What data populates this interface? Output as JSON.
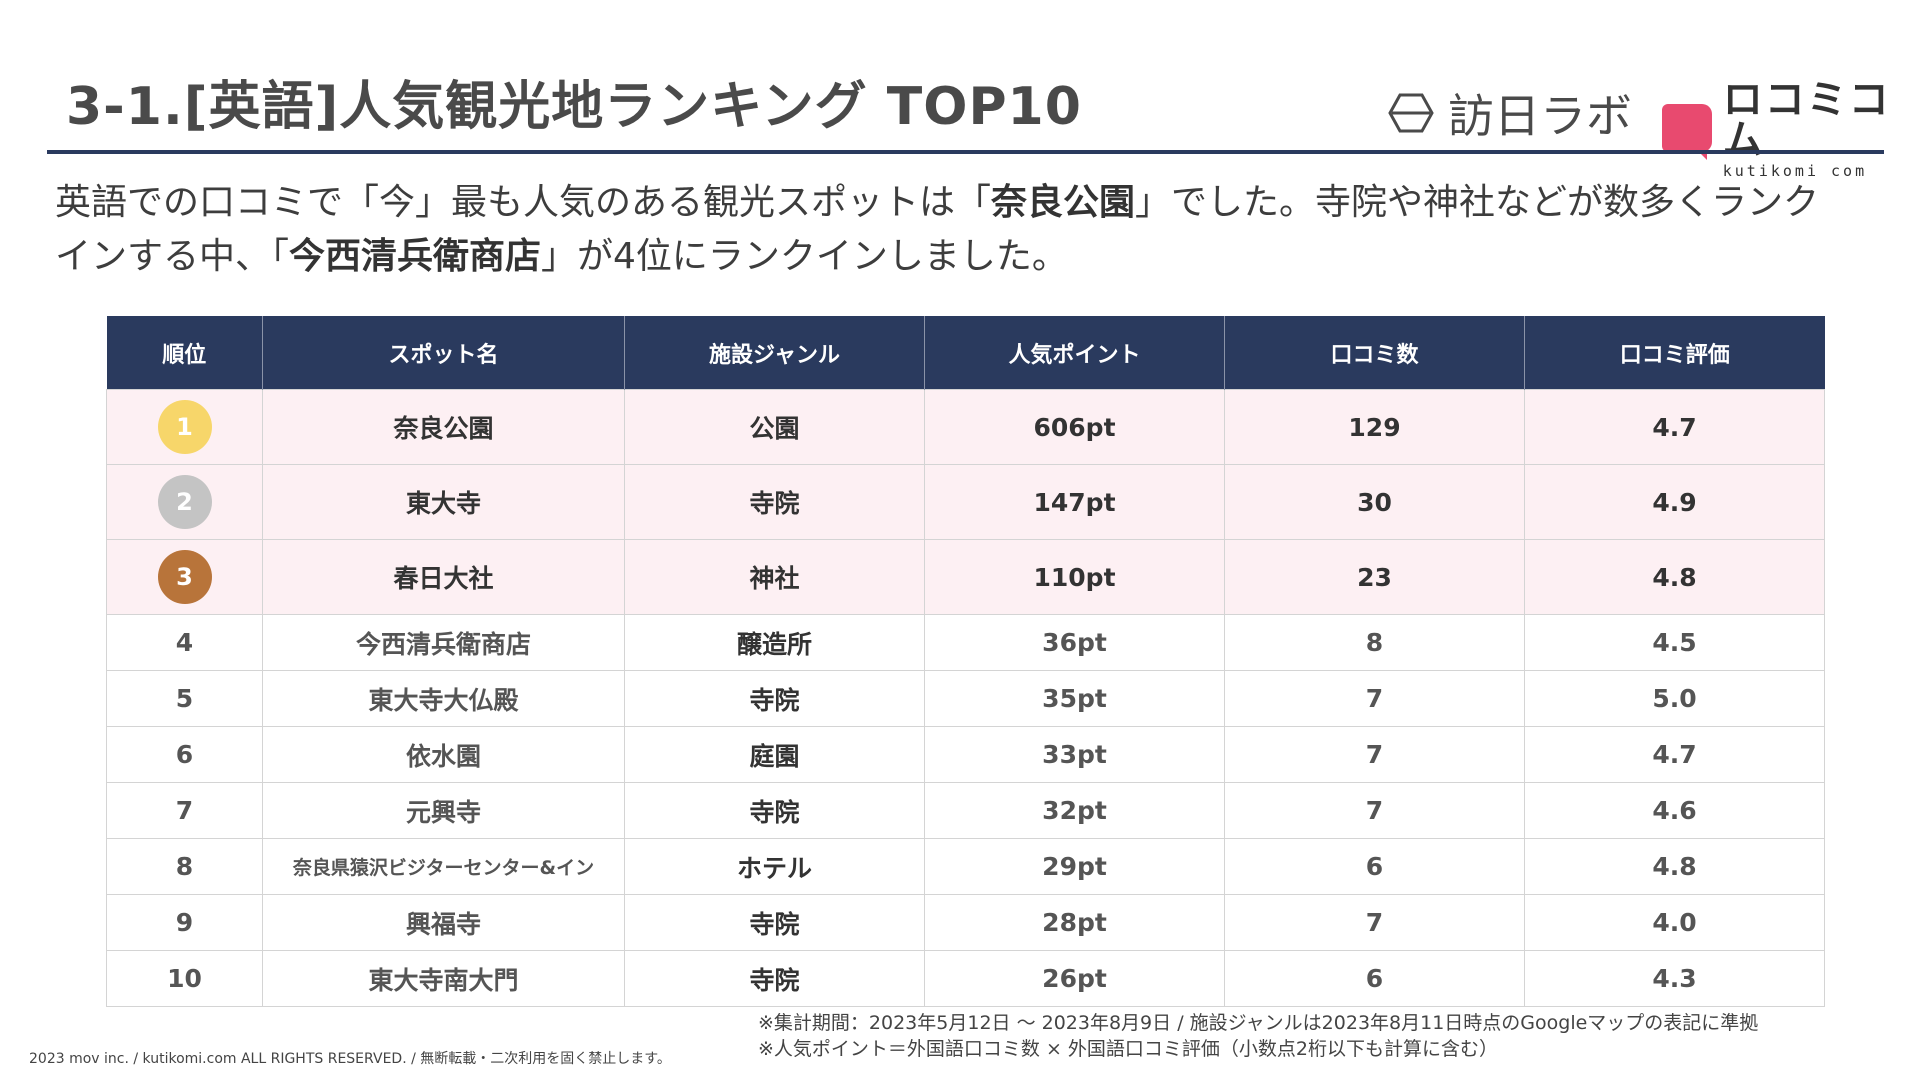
{
  "title": "3-1.[英語]人気観光地ランキング TOP10",
  "logos": {
    "houjin_lab": "訪日ラボ",
    "kuchikomi_jp": "ロコミコム",
    "kuchikomi_en": "kutikomi com",
    "brand_color": "#e84a6f"
  },
  "lead": {
    "part1": "英語での口コミで「今」最も人気のある観光スポットは「",
    "bold1": "奈良公園",
    "part2": "」でした。寺院や神社などが数多くランクインする中、「",
    "bold2": "今西清兵衛商店",
    "part3": "」が4位にランクインしました。"
  },
  "table": {
    "headers": [
      "順位",
      "スポット名",
      "施設ジャンル",
      "人気ポイント",
      "口コミ数",
      "口コミ評価"
    ],
    "rows": [
      {
        "rank": "1",
        "spot": "奈良公園",
        "genre": "公園",
        "points": "606pt",
        "reviews": "129",
        "rating": "4.7"
      },
      {
        "rank": "2",
        "spot": "東大寺",
        "genre": "寺院",
        "points": "147pt",
        "reviews": "30",
        "rating": "4.9"
      },
      {
        "rank": "3",
        "spot": "春日大社",
        "genre": "神社",
        "points": "110pt",
        "reviews": "23",
        "rating": "4.8"
      },
      {
        "rank": "4",
        "spot": "今西清兵衛商店",
        "genre": "醸造所",
        "points": "36pt",
        "reviews": "8",
        "rating": "4.5"
      },
      {
        "rank": "5",
        "spot": "東大寺大仏殿",
        "genre": "寺院",
        "points": "35pt",
        "reviews": "7",
        "rating": "5.0"
      },
      {
        "rank": "6",
        "spot": "依水園",
        "genre": "庭園",
        "points": "33pt",
        "reviews": "7",
        "rating": "4.7"
      },
      {
        "rank": "7",
        "spot": "元興寺",
        "genre": "寺院",
        "points": "32pt",
        "reviews": "7",
        "rating": "4.6"
      },
      {
        "rank": "8",
        "spot": "奈良県猿沢ビジターセンター&イン",
        "genre": "ホテル",
        "points": "29pt",
        "reviews": "6",
        "rating": "4.8"
      },
      {
        "rank": "9",
        "spot": "興福寺",
        "genre": "寺院",
        "points": "28pt",
        "reviews": "7",
        "rating": "4.0"
      },
      {
        "rank": "10",
        "spot": "東大寺南大門",
        "genre": "寺院",
        "points": "26pt",
        "reviews": "6",
        "rating": "4.3"
      }
    ]
  },
  "notes": {
    "line1": "※集計期間：2023年5月12日 〜 2023年8月9日 / 施設ジャンルは2023年8月11日時点のGoogleマップの表記に準拠",
    "line2": "※人気ポイント＝外国語口コミ数 × 外国語口コミ評価（小数点2桁以下も計算に含む）"
  },
  "copyright": "2023 mov inc. / kutikomi.com ALL RIGHTS RESERVED. / 無断転載・二次利用を固く禁止します。"
}
